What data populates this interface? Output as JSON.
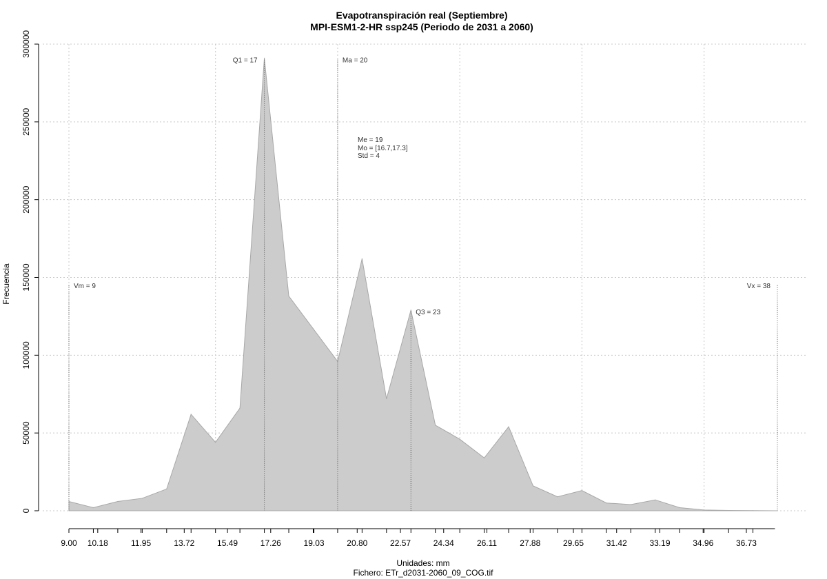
{
  "chart_data": {
    "type": "area",
    "title": "Evapotranspiración real (Septiembre)",
    "subtitle": "MPI-ESM1-2-HR ssp245 (Periodo de 2031 a 2060)",
    "xlabel": "Unidades: mm",
    "footer": "Fichero: ETr_d2031-2060_09_COG.tif",
    "ylabel": "Frecuencia",
    "xlim": [
      9.0,
      38.0
    ],
    "ylim": [
      0,
      300000
    ],
    "grid": true,
    "x_ticks": [
      9.0,
      10.18,
      11.95,
      13.72,
      15.49,
      17.26,
      19.03,
      20.8,
      22.57,
      24.34,
      26.11,
      27.88,
      29.65,
      31.42,
      33.19,
      34.96,
      36.73
    ],
    "x_tick_labels": [
      "9.00",
      "10.18",
      "11.95",
      "13.72",
      "15.49",
      "17.26",
      "19.03",
      "20.80",
      "22.57",
      "24.34",
      "26.11",
      "27.88",
      "29.65",
      "31.42",
      "33.19",
      "34.96",
      "36.73"
    ],
    "y_ticks": [
      0,
      50000,
      100000,
      150000,
      200000,
      250000,
      300000
    ],
    "y_tick_labels": [
      "0",
      "50000",
      "100000",
      "150000",
      "200000",
      "250000",
      "300000"
    ],
    "series": [
      {
        "x": [
          9.0,
          10.0,
          11.0,
          12.0,
          13.0,
          14.0,
          15.0,
          16.0,
          17.0,
          18.0,
          19.0,
          20.0,
          21.0,
          22.0,
          23.0,
          24.0,
          25.0,
          26.0,
          27.0,
          28.0,
          29.0,
          30.0,
          31.0,
          32.0,
          33.0,
          34.0,
          35.0,
          36.0,
          37.0,
          38.0
        ],
        "values": [
          6000,
          2000,
          6000,
          8000,
          14000,
          62000,
          44000,
          66000,
          291000,
          138000,
          117000,
          96000,
          162000,
          72000,
          129000,
          55000,
          46000,
          34000,
          54000,
          16000,
          9000,
          13000,
          5000,
          4000,
          7000,
          2000,
          500,
          200,
          100,
          0
        ]
      }
    ],
    "vlines": [
      {
        "x": 9.0,
        "top": 145000,
        "label": "Vm = 9",
        "anchor": "start"
      },
      {
        "x": 17.0,
        "top": 290000,
        "label": "Q1 = 17",
        "anchor": "end"
      },
      {
        "x": 20.0,
        "top": 290000,
        "label": "Ma = 20",
        "anchor": "start"
      },
      {
        "x": 23.0,
        "top": 128000,
        "label": "Q3 = 23",
        "anchor": "start"
      },
      {
        "x": 38.0,
        "top": 145000,
        "label": "Vx = 38",
        "anchor": "end"
      }
    ],
    "stats_block": [
      "Me = 19",
      "Mo = [16.7,17.3]",
      "Std = 4"
    ]
  }
}
